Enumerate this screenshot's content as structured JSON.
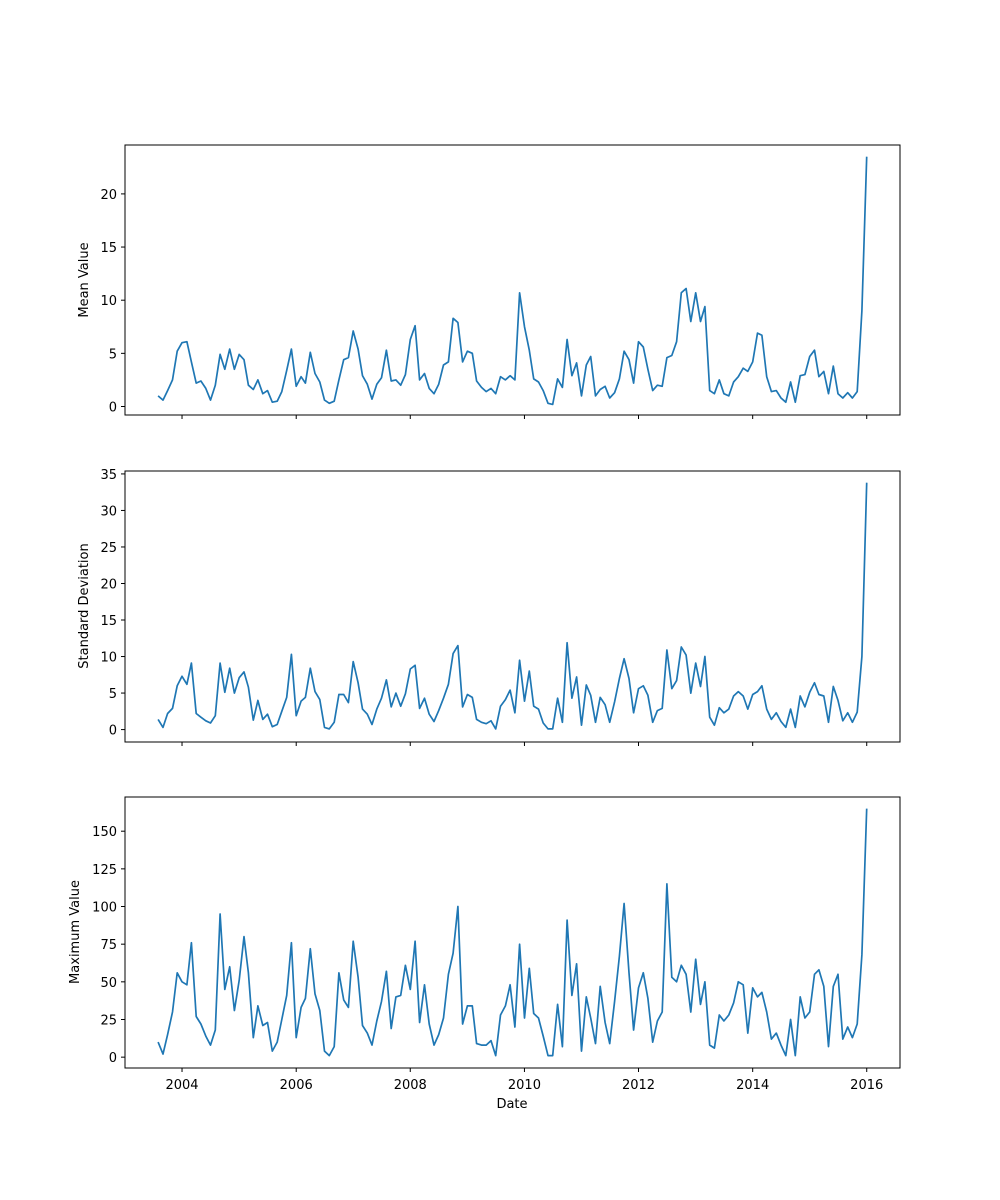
{
  "chart_data": {
    "type": "line",
    "layout": "three vertically stacked panels sharing the x axis",
    "line_color": "#1f77b4",
    "grid": false,
    "legend": "none",
    "xlabel": "Date",
    "x_ticks": [
      "2004",
      "2006",
      "2008",
      "2010",
      "2012",
      "2014",
      "2016"
    ],
    "x_range": [
      "2003-01-01",
      "2016-08-01"
    ],
    "x": [
      "2003-08",
      "2003-09",
      "2003-10",
      "2003-11",
      "2003-12",
      "2004-01",
      "2004-02",
      "2004-03",
      "2004-04",
      "2004-05",
      "2004-06",
      "2004-07",
      "2004-08",
      "2004-09",
      "2004-10",
      "2004-11",
      "2004-12",
      "2005-01",
      "2005-02",
      "2005-03",
      "2005-04",
      "2005-05",
      "2005-06",
      "2005-07",
      "2005-08",
      "2005-09",
      "2005-10",
      "2005-11",
      "2005-12",
      "2006-01",
      "2006-02",
      "2006-03",
      "2006-04",
      "2006-05",
      "2006-06",
      "2006-07",
      "2006-08",
      "2006-09",
      "2006-10",
      "2006-11",
      "2006-12",
      "2007-01",
      "2007-02",
      "2007-03",
      "2007-04",
      "2007-05",
      "2007-06",
      "2007-07",
      "2007-08",
      "2007-09",
      "2007-10",
      "2007-11",
      "2007-12",
      "2008-01",
      "2008-02",
      "2008-03",
      "2008-04",
      "2008-05",
      "2008-06",
      "2008-07",
      "2008-08",
      "2008-09",
      "2008-10",
      "2008-11",
      "2008-12",
      "2009-01",
      "2009-02",
      "2009-03",
      "2009-04",
      "2009-05",
      "2009-06",
      "2009-07",
      "2009-08",
      "2009-09",
      "2009-10",
      "2009-11",
      "2009-12",
      "2010-01",
      "2010-02",
      "2010-03",
      "2010-04",
      "2010-05",
      "2010-06",
      "2010-07",
      "2010-08",
      "2010-09",
      "2010-10",
      "2010-11",
      "2010-12",
      "2011-01",
      "2011-02",
      "2011-03",
      "2011-04",
      "2011-05",
      "2011-06",
      "2011-07",
      "2011-08",
      "2011-09",
      "2011-10",
      "2011-11",
      "2011-12",
      "2012-01",
      "2012-02",
      "2012-03",
      "2012-04",
      "2012-05",
      "2012-06",
      "2012-07",
      "2012-08",
      "2012-09",
      "2012-10",
      "2012-11",
      "2012-12",
      "2013-01",
      "2013-02",
      "2013-03",
      "2013-04",
      "2013-05",
      "2013-06",
      "2013-07",
      "2013-08",
      "2013-09",
      "2013-10",
      "2013-11",
      "2013-12",
      "2014-01",
      "2014-02",
      "2014-03",
      "2014-04",
      "2014-05",
      "2014-06",
      "2014-07",
      "2014-08",
      "2014-09",
      "2014-10",
      "2014-11",
      "2014-12",
      "2015-01",
      "2015-02",
      "2015-03",
      "2015-04",
      "2015-05",
      "2015-06",
      "2015-07",
      "2015-08",
      "2015-09",
      "2015-10",
      "2015-11",
      "2015-12",
      "2016-01"
    ],
    "panels": [
      {
        "ylabel": "Mean Value",
        "y_ticks": [
          0,
          5,
          10,
          15,
          20
        ],
        "ylim": [
          -0.8,
          24.6
        ],
        "values": [
          1.0,
          0.6,
          1.5,
          2.5,
          5.2,
          6.0,
          6.1,
          4.2,
          2.2,
          2.4,
          1.7,
          0.6,
          2.0,
          4.9,
          3.5,
          5.4,
          3.5,
          4.9,
          4.4,
          2.0,
          1.6,
          2.5,
          1.2,
          1.5,
          0.4,
          0.5,
          1.4,
          3.4,
          5.4,
          1.9,
          2.8,
          2.2,
          5.1,
          3.1,
          2.3,
          0.6,
          0.3,
          0.5,
          2.5,
          4.4,
          4.6,
          7.1,
          5.4,
          2.9,
          2.1,
          0.7,
          2.1,
          2.7,
          5.3,
          2.4,
          2.5,
          2.0,
          3.0,
          6.3,
          7.6,
          2.5,
          3.1,
          1.7,
          1.2,
          2.1,
          3.9,
          4.2,
          8.3,
          7.9,
          4.2,
          5.2,
          5.0,
          2.4,
          1.8,
          1.4,
          1.7,
          1.2,
          2.8,
          2.5,
          2.9,
          2.5,
          10.7,
          7.5,
          5.3,
          2.6,
          2.3,
          1.5,
          0.3,
          0.2,
          2.6,
          1.8,
          6.3,
          2.9,
          4.1,
          1.0,
          3.9,
          4.7,
          1.0,
          1.6,
          1.9,
          0.8,
          1.3,
          2.6,
          5.2,
          4.4,
          2.2,
          6.1,
          5.6,
          3.5,
          1.5,
          2.0,
          1.9,
          4.6,
          4.8,
          6.1,
          10.7,
          11.1,
          8.0,
          10.7,
          8.0,
          9.4,
          1.5,
          1.2,
          2.5,
          1.2,
          1.0,
          2.3,
          2.8,
          3.6,
          3.3,
          4.2,
          6.9,
          6.7,
          2.8,
          1.4,
          1.5,
          0.8,
          0.4,
          2.3,
          0.4,
          2.9,
          3.0,
          4.7,
          5.3,
          2.8,
          3.3,
          1.2,
          3.8,
          1.2,
          0.8,
          1.3,
          0.8,
          1.4,
          9.0,
          23.5
        ]
      },
      {
        "ylabel": "Standard Deviation",
        "y_ticks": [
          0,
          5,
          10,
          15,
          20,
          25,
          30,
          35
        ],
        "ylim": [
          -1.7,
          35.4
        ],
        "values": [
          1.4,
          0.3,
          2.2,
          2.9,
          6.0,
          7.3,
          6.2,
          9.1,
          2.2,
          1.7,
          1.2,
          0.9,
          1.9,
          9.1,
          5.1,
          8.4,
          5.0,
          7.1,
          7.9,
          5.8,
          1.3,
          4.0,
          1.4,
          2.1,
          0.4,
          0.7,
          2.5,
          4.4,
          10.3,
          1.9,
          3.9,
          4.4,
          8.4,
          5.2,
          4.1,
          0.3,
          0.1,
          1.0,
          4.8,
          4.8,
          3.7,
          9.3,
          6.4,
          2.8,
          2.1,
          0.7,
          2.8,
          4.3,
          6.8,
          3.1,
          5.0,
          3.2,
          4.9,
          8.3,
          8.8,
          2.9,
          4.3,
          2.1,
          1.1,
          2.6,
          4.3,
          6.2,
          10.4,
          11.5,
          3.1,
          4.8,
          4.4,
          1.4,
          1.0,
          0.8,
          1.2,
          0.1,
          3.2,
          4.1,
          5.4,
          2.3,
          9.5,
          3.9,
          8.0,
          3.2,
          2.8,
          0.9,
          0.1,
          0.1,
          4.3,
          1.0,
          11.9,
          4.3,
          7.2,
          0.6,
          6.1,
          4.7,
          1.0,
          4.4,
          3.4,
          1.0,
          3.8,
          7.0,
          9.7,
          7.0,
          2.3,
          5.6,
          6.0,
          4.7,
          1.0,
          2.6,
          2.9,
          10.9,
          5.6,
          6.7,
          11.3,
          10.2,
          5.0,
          9.1,
          5.9,
          10.0,
          1.7,
          0.6,
          3.0,
          2.3,
          2.8,
          4.6,
          5.2,
          4.6,
          2.8,
          4.8,
          5.2,
          6.0,
          2.8,
          1.4,
          2.3,
          1.1,
          0.3,
          2.8,
          0.3,
          4.6,
          3.1,
          5.1,
          6.4,
          4.8,
          4.6,
          1.0,
          5.9,
          4.0,
          1.2,
          2.3,
          1.0,
          2.4,
          10.0,
          33.8
        ]
      },
      {
        "ylabel": "Maximum Value",
        "y_ticks": [
          0,
          25,
          50,
          75,
          100,
          125,
          150
        ],
        "ylim": [
          -7.2,
          172.7
        ],
        "values": [
          10,
          2,
          15,
          30,
          56,
          50,
          48,
          76,
          27,
          22,
          14,
          8,
          18,
          95,
          45,
          60,
          31,
          51,
          80,
          56,
          13,
          34,
          21,
          23,
          4,
          10,
          25,
          41,
          76,
          13,
          33,
          39,
          72,
          42,
          31,
          4,
          1,
          7,
          56,
          38,
          33,
          77,
          53,
          21,
          16,
          8,
          24,
          37,
          57,
          19,
          40,
          41,
          61,
          45,
          77,
          23,
          48,
          22,
          8,
          15,
          26,
          55,
          69,
          100,
          22,
          34,
          34,
          9,
          8,
          8,
          11,
          1,
          28,
          34,
          48,
          20,
          75,
          26,
          59,
          29,
          26,
          14,
          1,
          1,
          35,
          7,
          91,
          41,
          62,
          4,
          40,
          26,
          9,
          47,
          23,
          9,
          37,
          67,
          102,
          56,
          18,
          46,
          56,
          39,
          10,
          24,
          30,
          115,
          53,
          50,
          61,
          55,
          30,
          65,
          35,
          50,
          8,
          6,
          28,
          24,
          28,
          36,
          50,
          48,
          16,
          46,
          40,
          43,
          30,
          12,
          16,
          8,
          1,
          25,
          1,
          40,
          26,
          30,
          55,
          58,
          47,
          7,
          47,
          55,
          12,
          20,
          13,
          22,
          68,
          165
        ]
      }
    ]
  }
}
